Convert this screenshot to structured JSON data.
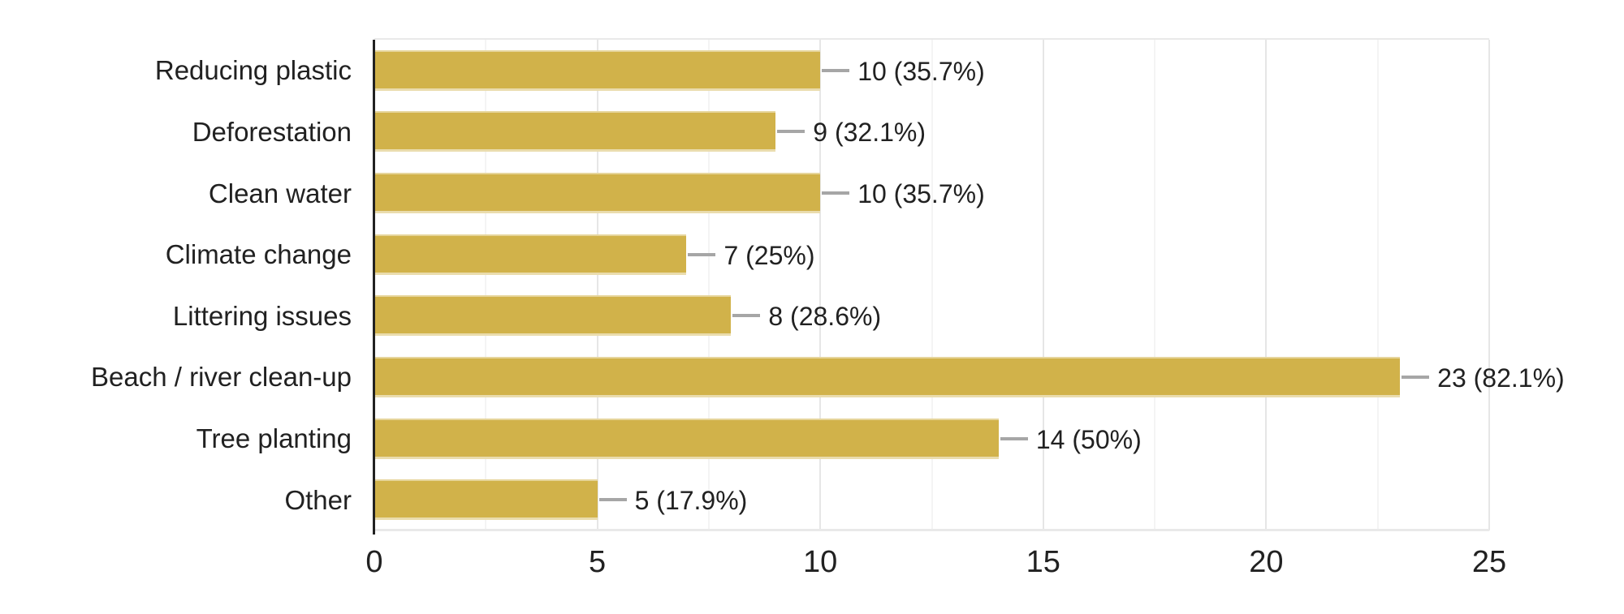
{
  "chart_data": {
    "type": "bar",
    "orientation": "horizontal",
    "title": "",
    "xlabel": "",
    "ylabel": "",
    "legend": "none",
    "grid": "vertical",
    "categories": [
      "Reducing plastic",
      "Deforestation",
      "Clean water",
      "Climate change",
      "Littering issues",
      "Beach / river clean-up",
      "Tree planting",
      "Other"
    ],
    "values": [
      10,
      9,
      10,
      7,
      8,
      23,
      14,
      5
    ],
    "bar_labels": [
      "10 (35.7%)",
      "9 (32.1%)",
      "10 (35.7%)",
      "7 (25%)",
      "8 (28.6%)",
      "23 (82.1%)",
      "14 (50%)",
      "5 (17.9%)"
    ],
    "xlim": [
      0,
      25
    ],
    "x_ticks": [
      0,
      5,
      10,
      15,
      20,
      25
    ],
    "x_tick_labels": [
      "0",
      "5",
      "10",
      "15",
      "20",
      "25"
    ],
    "minor_grid_step": 2.5,
    "colors": {
      "bar": "#d1b24a",
      "major_grid": "#e6e6e6",
      "minor_grid": "#f4f4f4",
      "axis_line": "#212121",
      "callout_line": "#a6a6a6",
      "text": "#212121",
      "background": "#ffffff"
    }
  }
}
